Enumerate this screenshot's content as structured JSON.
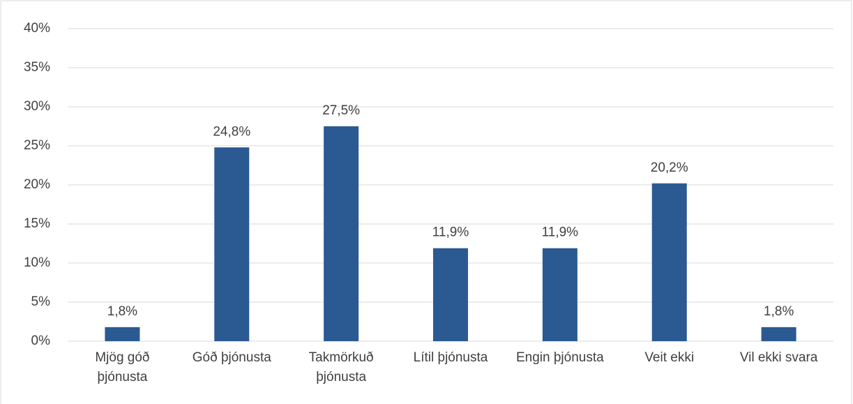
{
  "chart_data": {
    "type": "bar",
    "categories": [
      "Mjög góð þjónusta",
      "Góð þjónusta",
      "Takmörkuð þjónusta",
      "Lítil þjónusta",
      "Engin þjónusta",
      "Veit ekki",
      "Vil ekki svara"
    ],
    "values": [
      1.8,
      24.8,
      27.5,
      11.9,
      11.9,
      20.2,
      1.8
    ],
    "value_labels": [
      "1,8%",
      "24,8%",
      "27,5%",
      "11,9%",
      "11,9%",
      "20,2%",
      "1,8%"
    ],
    "color": "#2b5a92",
    "ylim": [
      0,
      40
    ],
    "yticks": [
      {
        "value": 0,
        "label": "0%"
      },
      {
        "value": 5,
        "label": "5%"
      },
      {
        "value": 10,
        "label": "10%"
      },
      {
        "value": 15,
        "label": "15%"
      },
      {
        "value": 20,
        "label": "20%"
      },
      {
        "value": 25,
        "label": "25%"
      },
      {
        "value": 30,
        "label": "30%"
      },
      {
        "value": 35,
        "label": "35%"
      },
      {
        "value": 40,
        "label": "40%"
      }
    ],
    "grid": true
  }
}
